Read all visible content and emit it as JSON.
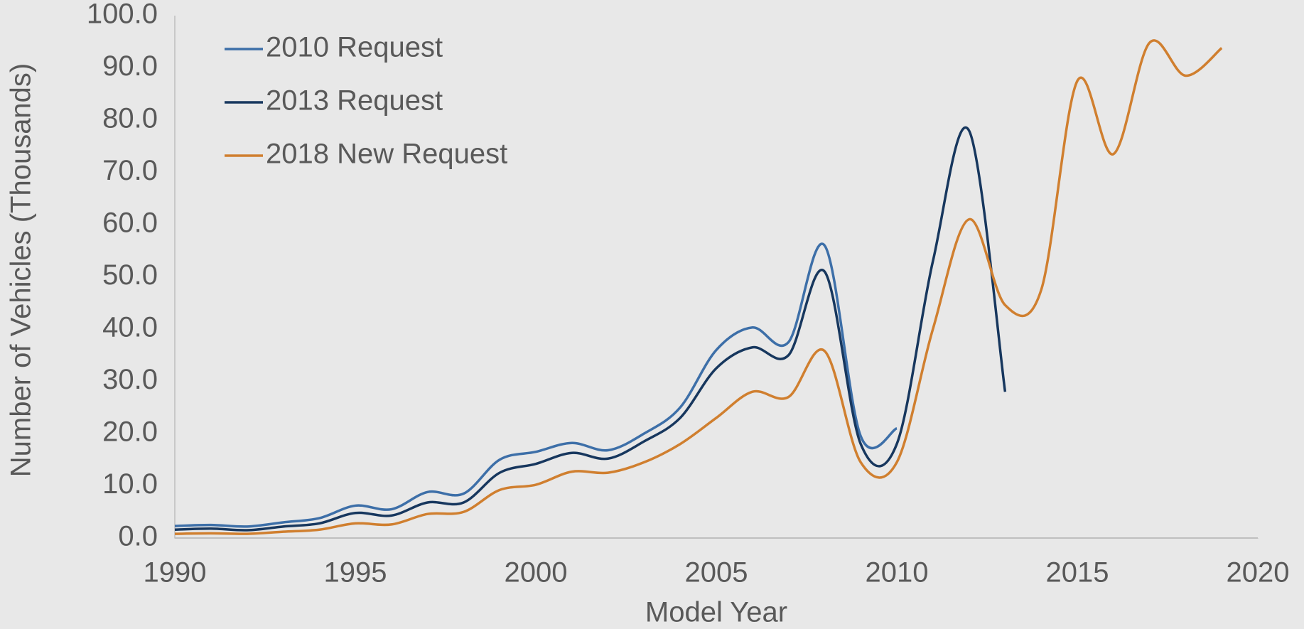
{
  "chart_data": {
    "type": "line",
    "x_label": "Model Year",
    "y_label": "Number of Vehicles (Thousands)",
    "x": [
      1990,
      1991,
      1992,
      1993,
      1994,
      1995,
      1996,
      1997,
      1998,
      1999,
      2000,
      2001,
      2002,
      2003,
      2004,
      2005,
      2006,
      2007,
      2008,
      2009,
      2010,
      2011,
      2012,
      2013,
      2014,
      2015,
      2016,
      2017,
      2018,
      2019
    ],
    "series": [
      {
        "name": "2010 Request",
        "color": "#3d6fa8",
        "values": [
          2.3,
          2.5,
          2.2,
          3.0,
          3.8,
          6.2,
          5.5,
          8.8,
          8.5,
          15,
          16.5,
          18.2,
          16.8,
          20,
          25,
          36,
          40.3,
          37.5,
          56,
          19.5,
          21,
          null,
          null,
          null,
          null,
          null,
          null,
          null,
          null,
          null
        ]
      },
      {
        "name": "2013 Request",
        "color": "#17375e",
        "values": [
          1.6,
          1.8,
          1.5,
          2.2,
          2.8,
          4.8,
          4.3,
          6.8,
          6.8,
          12.5,
          14.2,
          16.3,
          15.2,
          18.5,
          23,
          32.5,
          36.5,
          35,
          51,
          18,
          18,
          53,
          78,
          28,
          null,
          null,
          null,
          null,
          null,
          null
        ]
      },
      {
        "name": "2018 New Request",
        "color": "#d07f2f",
        "values": [
          0.8,
          0.9,
          0.8,
          1.2,
          1.6,
          2.8,
          2.6,
          4.6,
          5,
          9.2,
          10.2,
          12.7,
          12.5,
          14.5,
          18,
          23,
          28,
          27,
          35.8,
          14.5,
          14.5,
          40,
          61,
          44.6,
          47.5,
          87.5,
          73.5,
          94.8,
          88.5,
          93.8
        ]
      }
    ],
    "xlim": [
      1990,
      2020
    ],
    "xticks": [
      1990,
      1995,
      2000,
      2005,
      2010,
      2015,
      2020
    ],
    "ylim": [
      0,
      100
    ],
    "yticks": [
      {
        "value": 0,
        "label": "0.0"
      },
      {
        "value": 10,
        "label": "10.0"
      },
      {
        "value": 20,
        "label": "20.0"
      },
      {
        "value": 30,
        "label": "30.0"
      },
      {
        "value": 40,
        "label": "40.0"
      },
      {
        "value": 50,
        "label": "50.0"
      },
      {
        "value": 60,
        "label": "60.0"
      },
      {
        "value": 70,
        "label": "70.0"
      },
      {
        "value": 80,
        "label": "80.0"
      },
      {
        "value": 90,
        "label": "90.0"
      },
      {
        "value": 100,
        "label": "100.0"
      }
    ],
    "grid": false,
    "legend": "upper left"
  }
}
